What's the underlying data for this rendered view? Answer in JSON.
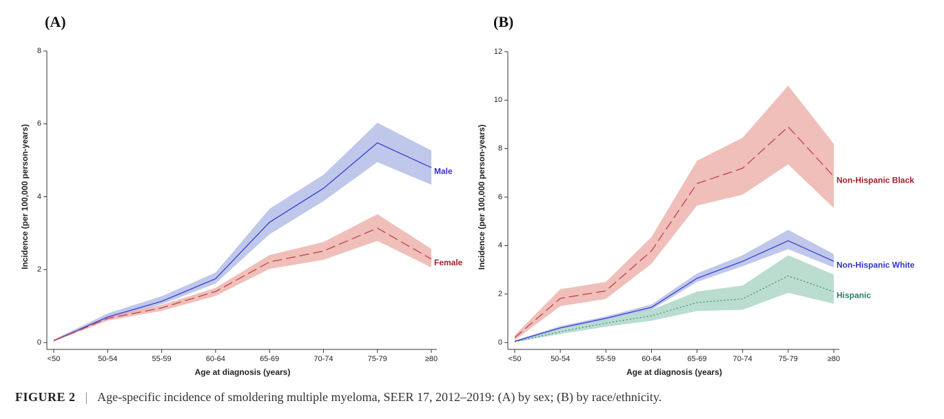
{
  "chart_data": [
    {
      "type": "line",
      "title": "(A)",
      "x_label": "Age at diagnosis (years)",
      "y_label": "Incidence (per 100,000 person-years)",
      "categories": [
        "<50",
        "50-54",
        "55-59",
        "60-64",
        "65-69",
        "70-74",
        "75-79",
        "≥80"
      ],
      "ylim": [
        0,
        8
      ],
      "yticks": [
        0,
        2,
        4,
        6,
        8
      ],
      "series": [
        {
          "name": "Male",
          "color": "#3b3bd0",
          "band_color": "#a9b6e3",
          "label_color": "#3434c8",
          "dash": "solid",
          "values": [
            0.05,
            0.7,
            1.13,
            1.75,
            3.3,
            4.23,
            5.48,
            4.8
          ],
          "lower": [
            0.03,
            0.65,
            1.05,
            1.62,
            2.97,
            3.88,
            4.95,
            4.33
          ],
          "upper": [
            0.08,
            0.8,
            1.27,
            1.92,
            3.67,
            4.6,
            6.03,
            5.27
          ]
        },
        {
          "name": "Female",
          "color": "#c0404a",
          "band_color": "#eba9a2",
          "label_color": "#a0202a",
          "dash": "dashed",
          "values": [
            0.05,
            0.66,
            0.95,
            1.4,
            2.21,
            2.51,
            3.14,
            2.29
          ],
          "lower": [
            0.03,
            0.6,
            0.87,
            1.28,
            2.02,
            2.27,
            2.79,
            2.06
          ],
          "upper": [
            0.08,
            0.72,
            1.03,
            1.5,
            2.4,
            2.76,
            3.52,
            2.57
          ]
        }
      ]
    },
    {
      "type": "line",
      "title": "(B)",
      "x_label": "Age at diagnosis (years)",
      "y_label": "Incidence (per 100,000 person-years)",
      "categories": [
        "<50",
        "50-54",
        "55-59",
        "60-64",
        "65-69",
        "70-74",
        "75-79",
        "≥80"
      ],
      "ylim": [
        0,
        12
      ],
      "yticks": [
        0,
        2,
        4,
        6,
        8,
        10,
        12
      ],
      "series": [
        {
          "name": "Non-Hispanic Black",
          "color": "#c0404a",
          "band_color": "#eba9a2",
          "label_color": "#a0202a",
          "dash": "dashed",
          "values": [
            0.2,
            1.82,
            2.13,
            3.78,
            6.56,
            7.19,
            8.9,
            6.85
          ],
          "lower": [
            0.1,
            1.5,
            1.8,
            3.25,
            5.65,
            6.1,
            7.35,
            5.55
          ],
          "upper": [
            0.3,
            2.2,
            2.5,
            4.35,
            7.5,
            8.45,
            10.6,
            8.2
          ]
        },
        {
          "name": "Non-Hispanic White",
          "color": "#3b3bd0",
          "band_color": "#a9b6e3",
          "label_color": "#3434c8",
          "dash": "solid",
          "values": [
            0.05,
            0.6,
            1.0,
            1.45,
            2.65,
            3.35,
            4.2,
            3.35
          ],
          "lower": [
            0.03,
            0.55,
            0.93,
            1.35,
            2.5,
            3.15,
            3.85,
            3.1
          ],
          "upper": [
            0.08,
            0.68,
            1.08,
            1.57,
            2.85,
            3.6,
            4.65,
            3.65
          ]
        },
        {
          "name": "Hispanic",
          "color": "#3a8f7f",
          "band_color": "#a3d1c0",
          "label_color": "#2a7d6d",
          "dash": "dotted",
          "values": [
            0.03,
            0.45,
            0.8,
            1.1,
            1.65,
            1.8,
            2.75,
            2.1
          ],
          "lower": [
            0.01,
            0.35,
            0.65,
            0.9,
            1.3,
            1.35,
            2.05,
            1.6
          ],
          "upper": [
            0.06,
            0.55,
            0.95,
            1.35,
            2.1,
            2.35,
            3.6,
            2.8
          ]
        }
      ]
    }
  ],
  "caption": {
    "label": "FIGURE 2",
    "separator": "|",
    "text": "Age-specific incidence of smoldering multiple myeloma, SEER 17, 2012–2019: (A) by sex; (B) by race/ethnicity."
  }
}
